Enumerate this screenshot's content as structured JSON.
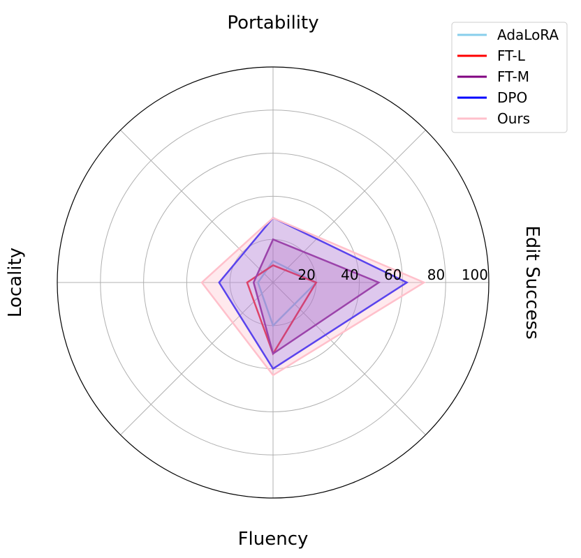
{
  "chart_data": {
    "type": "radar",
    "axes": [
      "Edit Success",
      "Portability",
      "Locality",
      "Fluency"
    ],
    "rlim": [
      0,
      100
    ],
    "rticks": [
      "20",
      "40",
      "60",
      "80",
      "100"
    ],
    "rtick_values": [
      20,
      40,
      60,
      80,
      100
    ],
    "grid": true,
    "legend_position": "top-right",
    "series": [
      {
        "name": "AdaLoRA",
        "values": [
          20,
          10,
          7,
          20
        ],
        "color": "#87ceeb",
        "fill": false
      },
      {
        "name": "FT-L",
        "values": [
          20,
          8,
          12,
          33
        ],
        "color": "#ff0000",
        "fill": false
      },
      {
        "name": "FT-M",
        "values": [
          49,
          20,
          9,
          33
        ],
        "color": "#800080",
        "fill": true,
        "fill_color": "#800080",
        "fill_opacity": 0.2
      },
      {
        "name": "DPO",
        "values": [
          62,
          30,
          25,
          40
        ],
        "color": "#0000ff",
        "fill": true,
        "fill_color": "#0000ff",
        "fill_opacity": 0.2
      },
      {
        "name": "Ours",
        "values": [
          70,
          30,
          33,
          43
        ],
        "color": "#ffc0cb",
        "fill": true,
        "fill_color": "#ffc0cb",
        "fill_opacity": 0.35
      }
    ]
  }
}
